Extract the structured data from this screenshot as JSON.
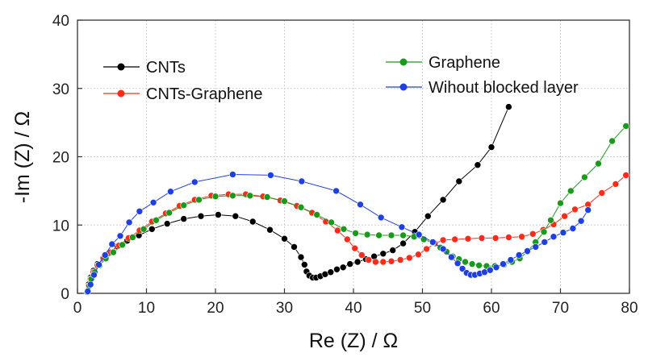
{
  "chart_data": {
    "type": "scatter",
    "xlabel": "Re (Z) / Ω",
    "ylabel": "-Im (Z) / Ω",
    "xlim": [
      0,
      80
    ],
    "ylim": [
      0,
      40
    ],
    "x_ticks": [
      "0",
      "10",
      "20",
      "30",
      "40",
      "50",
      "60",
      "70",
      "80"
    ],
    "y_ticks": [
      "0",
      "10",
      "20",
      "30",
      "40"
    ],
    "grid": true,
    "legend_placement": "top",
    "series": [
      {
        "name": "CNTs",
        "color": "#000000",
        "points": [
          [
            1.4,
            0.3
          ],
          [
            1.6,
            1.3
          ],
          [
            1.9,
            2.3
          ],
          [
            2.3,
            3.3
          ],
          [
            2.9,
            4.3
          ],
          [
            3.7,
            5.1
          ],
          [
            4.6,
            5.9
          ],
          [
            5.8,
            6.9
          ],
          [
            7.2,
            7.7
          ],
          [
            8.9,
            8.5
          ],
          [
            10.8,
            9.4
          ],
          [
            13.0,
            10.2
          ],
          [
            15.4,
            10.9
          ],
          [
            17.9,
            11.3
          ],
          [
            20.4,
            11.5
          ],
          [
            22.9,
            11.3
          ],
          [
            25.4,
            10.5
          ],
          [
            27.9,
            9.3
          ],
          [
            30.0,
            8.0
          ],
          [
            31.4,
            6.8
          ],
          [
            32.4,
            5.3
          ],
          [
            32.9,
            4.2
          ],
          [
            33.2,
            3.2
          ],
          [
            33.6,
            2.6
          ],
          [
            34.1,
            2.3
          ],
          [
            34.6,
            2.3
          ],
          [
            35.2,
            2.5
          ],
          [
            35.9,
            2.8
          ],
          [
            36.7,
            3.1
          ],
          [
            37.6,
            3.5
          ],
          [
            38.5,
            3.8
          ],
          [
            39.5,
            4.3
          ],
          [
            40.6,
            4.6
          ],
          [
            41.8,
            5.0
          ],
          [
            43.0,
            5.4
          ],
          [
            44.3,
            5.8
          ],
          [
            45.7,
            6.3
          ],
          [
            47.2,
            7.3
          ],
          [
            48.9,
            9.0
          ],
          [
            50.8,
            11.3
          ],
          [
            53.0,
            13.7
          ],
          [
            55.3,
            16.4
          ],
          [
            58.0,
            18.8
          ],
          [
            60.0,
            21.4
          ],
          [
            62.5,
            27.3
          ]
        ]
      },
      {
        "name": "CNTs-Graphene",
        "color": "#ff2a1a",
        "points": [
          [
            1.4,
            0.3
          ],
          [
            1.6,
            1.1
          ],
          [
            1.9,
            2.1
          ],
          [
            2.3,
            3.1
          ],
          [
            2.9,
            4.1
          ],
          [
            3.8,
            5.1
          ],
          [
            4.8,
            6.0
          ],
          [
            6.0,
            7.0
          ],
          [
            7.4,
            8.1
          ],
          [
            9.0,
            9.2
          ],
          [
            10.8,
            10.5
          ],
          [
            12.8,
            11.7
          ],
          [
            14.8,
            12.8
          ],
          [
            17.0,
            13.7
          ],
          [
            19.4,
            14.3
          ],
          [
            21.9,
            14.5
          ],
          [
            24.4,
            14.5
          ],
          [
            26.9,
            14.2
          ],
          [
            29.4,
            13.6
          ],
          [
            31.8,
            12.8
          ],
          [
            34.0,
            11.8
          ],
          [
            36.0,
            10.5
          ],
          [
            37.7,
            9.2
          ],
          [
            39.1,
            7.9
          ],
          [
            40.2,
            6.6
          ],
          [
            41.2,
            5.6
          ],
          [
            42.2,
            4.9
          ],
          [
            43.2,
            4.6
          ],
          [
            44.3,
            4.6
          ],
          [
            45.5,
            4.7
          ],
          [
            46.8,
            4.9
          ],
          [
            48.1,
            5.2
          ],
          [
            49.4,
            5.7
          ],
          [
            50.6,
            6.5
          ],
          [
            51.8,
            7.3
          ],
          [
            53.0,
            7.8
          ],
          [
            54.7,
            7.9
          ],
          [
            56.6,
            8.0
          ],
          [
            58.6,
            8.1
          ],
          [
            60.6,
            8.1
          ],
          [
            62.5,
            8.2
          ],
          [
            64.4,
            8.3
          ],
          [
            66.0,
            8.7
          ],
          [
            67.5,
            9.3
          ],
          [
            69.0,
            10.1
          ],
          [
            70.6,
            11.3
          ],
          [
            72.1,
            12.3
          ],
          [
            74.0,
            13.0
          ],
          [
            76.0,
            14.7
          ],
          [
            78.0,
            16.0
          ],
          [
            79.5,
            17.3
          ]
        ]
      },
      {
        "name": "Graphene",
        "color": "#1a9a1a",
        "points": [
          [
            1.4,
            0.2
          ],
          [
            1.7,
            1.1
          ],
          [
            2.0,
            2.1
          ],
          [
            2.5,
            3.1
          ],
          [
            3.2,
            4.1
          ],
          [
            4.1,
            5.1
          ],
          [
            5.2,
            6.0
          ],
          [
            6.5,
            7.1
          ],
          [
            8.0,
            8.2
          ],
          [
            9.6,
            9.4
          ],
          [
            11.4,
            10.7
          ],
          [
            13.3,
            11.8
          ],
          [
            15.4,
            12.9
          ],
          [
            17.6,
            13.7
          ],
          [
            20.0,
            14.2
          ],
          [
            22.5,
            14.3
          ],
          [
            25.0,
            14.3
          ],
          [
            27.5,
            14.1
          ],
          [
            30.0,
            13.5
          ],
          [
            32.4,
            12.6
          ],
          [
            34.7,
            11.5
          ],
          [
            36.8,
            10.4
          ],
          [
            38.6,
            9.4
          ],
          [
            40.3,
            8.8
          ],
          [
            42.0,
            8.6
          ],
          [
            43.7,
            8.5
          ],
          [
            45.5,
            8.5
          ],
          [
            47.2,
            8.5
          ],
          [
            48.8,
            8.3
          ],
          [
            50.2,
            7.9
          ],
          [
            51.5,
            7.4
          ],
          [
            52.6,
            6.7
          ],
          [
            53.5,
            6.1
          ],
          [
            54.4,
            5.4
          ],
          [
            55.3,
            5.0
          ],
          [
            56.2,
            4.6
          ],
          [
            57.2,
            4.3
          ],
          [
            58.2,
            4.1
          ],
          [
            59.3,
            4.0
          ],
          [
            60.5,
            4.0
          ],
          [
            61.8,
            4.2
          ],
          [
            63.0,
            4.6
          ],
          [
            64.1,
            5.1
          ],
          [
            65.2,
            6.1
          ],
          [
            66.4,
            7.5
          ],
          [
            67.6,
            9.0
          ],
          [
            68.6,
            10.7
          ],
          [
            70.0,
            13.2
          ],
          [
            71.5,
            15.0
          ],
          [
            73.5,
            17.0
          ],
          [
            75.5,
            19.0
          ],
          [
            77.5,
            22.3
          ],
          [
            79.5,
            24.5
          ]
        ]
      },
      {
        "name": "Wihout blocked layer",
        "color": "#1f3fe6",
        "points": [
          [
            1.5,
            0.3
          ],
          [
            1.9,
            1.3
          ],
          [
            2.4,
            2.7
          ],
          [
            3.1,
            4.2
          ],
          [
            4.0,
            5.6
          ],
          [
            5.0,
            7.2
          ],
          [
            6.2,
            8.4
          ],
          [
            7.5,
            10.4
          ],
          [
            9.0,
            12.0
          ],
          [
            11.0,
            13.3
          ],
          [
            13.5,
            14.9
          ],
          [
            17.0,
            16.3
          ],
          [
            22.5,
            17.4
          ],
          [
            28.0,
            17.3
          ],
          [
            32.5,
            16.4
          ],
          [
            37.5,
            15.0
          ],
          [
            41.0,
            13.0
          ],
          [
            44.0,
            11.1
          ],
          [
            47.0,
            9.7
          ],
          [
            49.5,
            8.6
          ],
          [
            51.5,
            7.5
          ],
          [
            53.0,
            6.5
          ],
          [
            54.2,
            5.3
          ],
          [
            55.1,
            4.4
          ],
          [
            55.8,
            3.6
          ],
          [
            56.4,
            3.0
          ],
          [
            57.0,
            2.7
          ],
          [
            57.6,
            2.7
          ],
          [
            58.3,
            2.9
          ],
          [
            59.0,
            3.1
          ],
          [
            59.8,
            3.4
          ],
          [
            60.7,
            3.8
          ],
          [
            61.7,
            4.3
          ],
          [
            62.8,
            4.9
          ],
          [
            64.0,
            5.6
          ],
          [
            65.2,
            6.2
          ],
          [
            66.4,
            6.8
          ],
          [
            67.7,
            7.5
          ],
          [
            69.0,
            8.3
          ],
          [
            70.4,
            8.9
          ],
          [
            71.8,
            9.5
          ],
          [
            73.0,
            10.6
          ],
          [
            74.0,
            12.2
          ]
        ]
      }
    ]
  }
}
